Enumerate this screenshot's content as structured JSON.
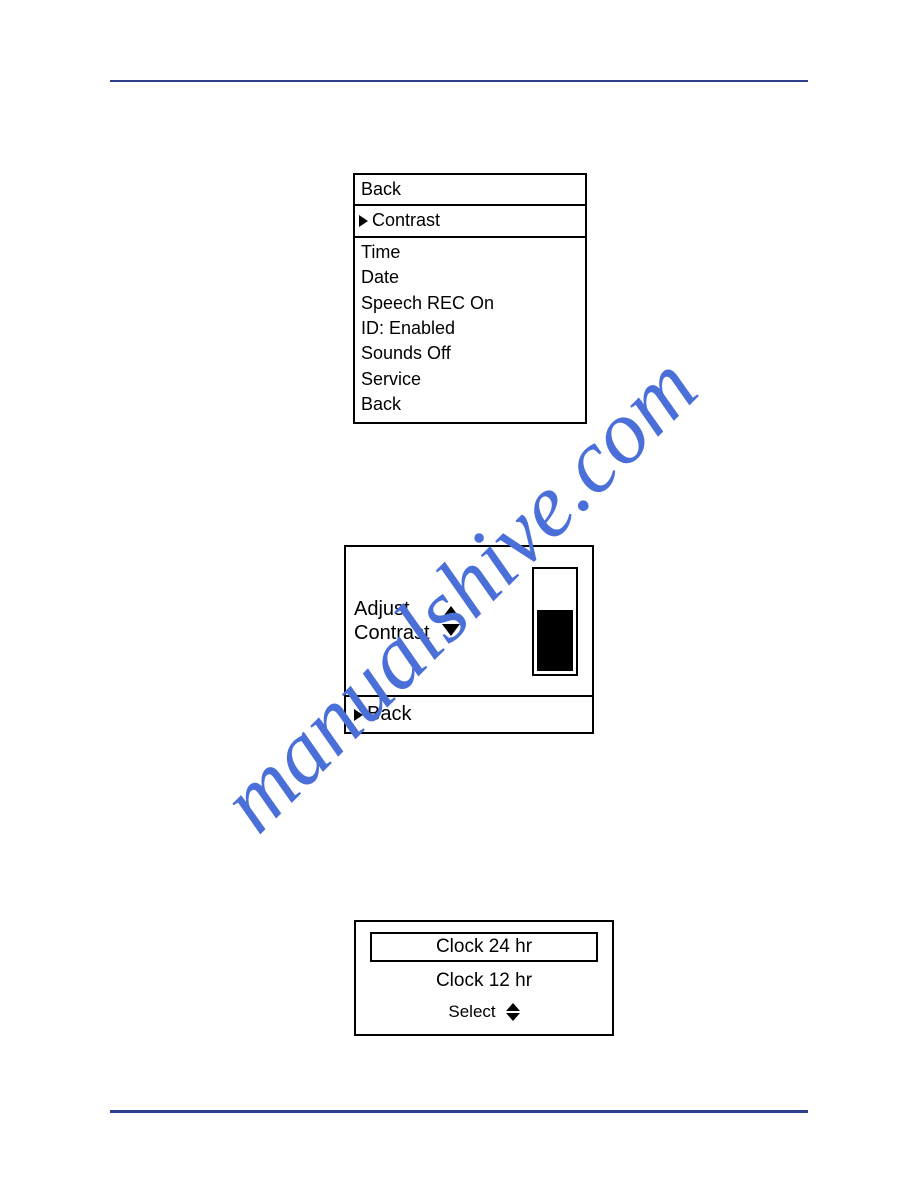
{
  "page": {
    "hr_color": "#2d3f8f",
    "watermark_text": "manualshive.com",
    "watermark_color": "#4a6fd8"
  },
  "screen1": {
    "back_top": "Back",
    "selected": "Contrast",
    "items": {
      "time": "Time",
      "date": "Date",
      "speech": "Speech REC On",
      "id": "ID: Enabled",
      "sounds": "Sounds Off",
      "service": "Service",
      "back": "Back"
    }
  },
  "screen2": {
    "label_line1": "Adjust",
    "label_line2": "Contrast",
    "back": "Back",
    "contrast_fill_percent": 58
  },
  "screen3": {
    "option_selected": "Clock 24 hr",
    "option_other": "Clock 12 hr",
    "select_label": "Select"
  }
}
